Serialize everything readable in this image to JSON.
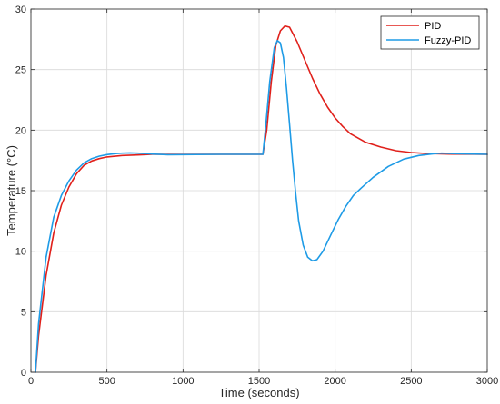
{
  "chart_data": {
    "type": "line",
    "xlabel": "Time (seconds)",
    "ylabel": "Temperature (°C)",
    "xlim": [
      0,
      3000
    ],
    "ylim": [
      0,
      30
    ],
    "x_ticks": [
      0,
      500,
      1000,
      1500,
      2000,
      2500,
      3000
    ],
    "y_ticks": [
      0,
      5,
      10,
      15,
      20,
      25,
      30
    ],
    "grid": true,
    "legend_position": "top-right",
    "series": [
      {
        "name": "PID",
        "color": "#e0201b",
        "points": [
          [
            30,
            0
          ],
          [
            50,
            3
          ],
          [
            100,
            8
          ],
          [
            150,
            11.5
          ],
          [
            200,
            13.8
          ],
          [
            250,
            15.3
          ],
          [
            300,
            16.4
          ],
          [
            350,
            17.1
          ],
          [
            400,
            17.45
          ],
          [
            450,
            17.65
          ],
          [
            500,
            17.78
          ],
          [
            600,
            17.9
          ],
          [
            700,
            17.95
          ],
          [
            800,
            18
          ],
          [
            1000,
            18
          ],
          [
            1250,
            18
          ],
          [
            1525,
            18
          ],
          [
            1550,
            20
          ],
          [
            1580,
            24
          ],
          [
            1610,
            27
          ],
          [
            1640,
            28.2
          ],
          [
            1670,
            28.6
          ],
          [
            1700,
            28.5
          ],
          [
            1750,
            27.3
          ],
          [
            1800,
            25.8
          ],
          [
            1850,
            24.3
          ],
          [
            1900,
            23
          ],
          [
            1950,
            21.9
          ],
          [
            2000,
            21
          ],
          [
            2050,
            20.3
          ],
          [
            2100,
            19.7
          ],
          [
            2200,
            19
          ],
          [
            2300,
            18.6
          ],
          [
            2400,
            18.3
          ],
          [
            2500,
            18.15
          ],
          [
            2600,
            18.07
          ],
          [
            2750,
            18.02
          ],
          [
            3000,
            18
          ]
        ]
      },
      {
        "name": "Fuzzy-PID",
        "color": "#1e9be6",
        "points": [
          [
            30,
            0
          ],
          [
            50,
            4
          ],
          [
            100,
            9.5
          ],
          [
            150,
            12.8
          ],
          [
            200,
            14.6
          ],
          [
            250,
            15.8
          ],
          [
            300,
            16.7
          ],
          [
            350,
            17.3
          ],
          [
            400,
            17.65
          ],
          [
            450,
            17.85
          ],
          [
            500,
            17.98
          ],
          [
            550,
            18.05
          ],
          [
            600,
            18.1
          ],
          [
            650,
            18.12
          ],
          [
            700,
            18.1
          ],
          [
            800,
            18.02
          ],
          [
            900,
            17.97
          ],
          [
            1000,
            17.98
          ],
          [
            1250,
            18
          ],
          [
            1525,
            18
          ],
          [
            1545,
            20.5
          ],
          [
            1570,
            24
          ],
          [
            1600,
            26.8
          ],
          [
            1620,
            27.4
          ],
          [
            1640,
            27.2
          ],
          [
            1660,
            26
          ],
          [
            1680,
            23.5
          ],
          [
            1700,
            20.5
          ],
          [
            1720,
            17.5
          ],
          [
            1740,
            14.8
          ],
          [
            1760,
            12.5
          ],
          [
            1790,
            10.5
          ],
          [
            1820,
            9.5
          ],
          [
            1850,
            9.2
          ],
          [
            1880,
            9.3
          ],
          [
            1920,
            10
          ],
          [
            1970,
            11.3
          ],
          [
            2020,
            12.6
          ],
          [
            2070,
            13.7
          ],
          [
            2120,
            14.6
          ],
          [
            2170,
            15.2
          ],
          [
            2250,
            16.1
          ],
          [
            2350,
            17
          ],
          [
            2450,
            17.6
          ],
          [
            2550,
            17.9
          ],
          [
            2650,
            18.05
          ],
          [
            2700,
            18.1
          ],
          [
            2800,
            18.05
          ],
          [
            3000,
            18
          ]
        ]
      }
    ]
  }
}
